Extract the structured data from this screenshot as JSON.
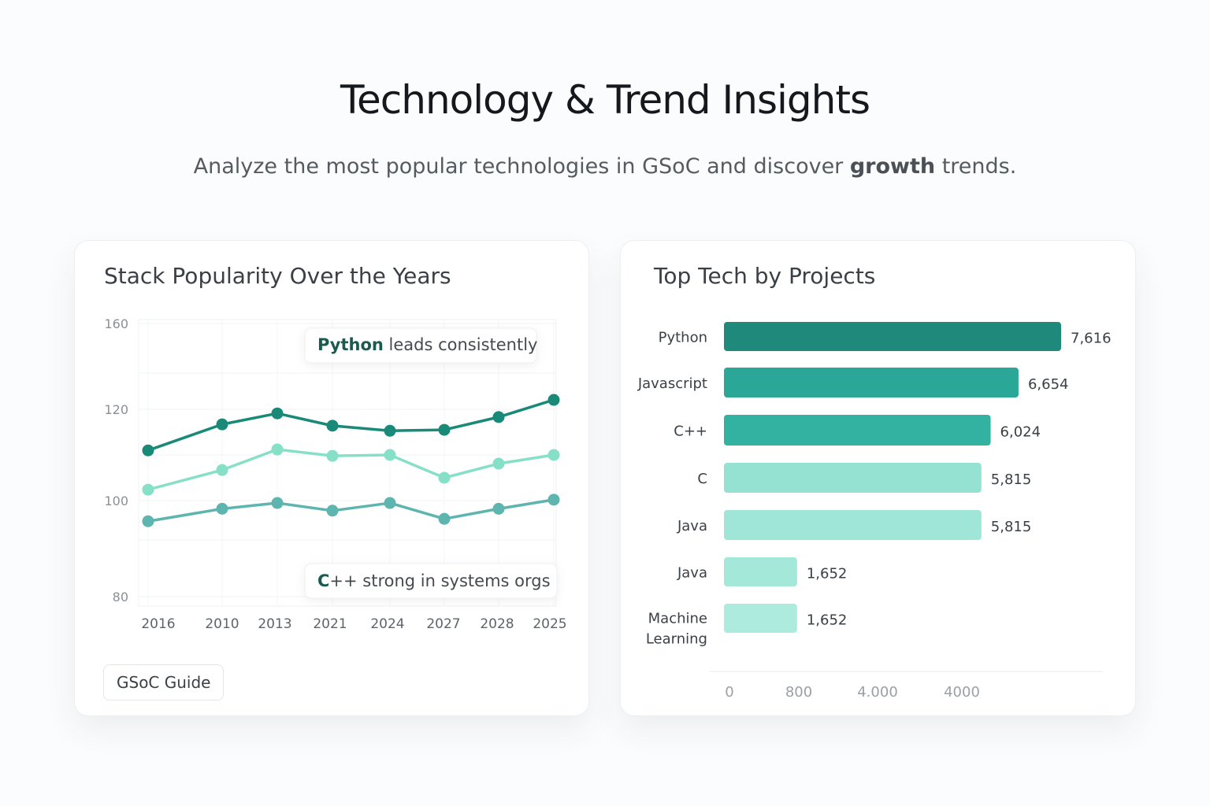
{
  "header": {
    "title": "Technology & Trend Insights",
    "subtitle_pre": "Analyze the most popular technologies in GSoC and discover ",
    "subtitle_bold": "growth",
    "subtitle_post": " trends."
  },
  "left_card": {
    "title": "Stack Popularity Over the Years",
    "guide_button": "GSoC Guide",
    "annotations": [
      {
        "bold": "Python",
        "rest": " leads consistently"
      },
      {
        "bold": "C",
        "rest": "++ strong in systems orgs"
      }
    ]
  },
  "right_card": {
    "title": "Top Tech by Projects"
  },
  "chart_data": [
    {
      "type": "line",
      "title": "Stack Popularity Over the Years",
      "categories": [
        "2016",
        "2010",
        "2013",
        "2021",
        "2024",
        "2027",
        "2028",
        "2025"
      ],
      "y_ticks": [
        160,
        120,
        100,
        80
      ],
      "ylim": [
        80,
        160
      ],
      "grid": true,
      "series": [
        {
          "color": "#1a8a78",
          "values": [
            111.0,
            116.7,
            119.1,
            116.4,
            115.3,
            115.5,
            118.3,
            124.4
          ]
        },
        {
          "color": "#86e0c8",
          "values": [
            102.4,
            106.7,
            111.2,
            109.8,
            110.0,
            105.0,
            108.1,
            110.0
          ]
        },
        {
          "color": "#5eb5b0",
          "values": [
            95.7,
            98.3,
            99.5,
            97.9,
            99.5,
            96.2,
            98.3,
            100.2
          ]
        }
      ]
    },
    {
      "type": "bar",
      "orientation": "horizontal",
      "title": "Top Tech by Projects",
      "categories": [
        "Python",
        "Javascript",
        "C++",
        "C",
        "Java",
        "Java",
        "Machine Learning"
      ],
      "values": [
        7616,
        6654,
        6024,
        5815,
        5815,
        1652,
        1652
      ],
      "value_labels": [
        "7,616",
        "6,654",
        "6,024",
        "5,815",
        "5,815",
        "1,652",
        "1,652"
      ],
      "colors": [
        "#1f8a7c",
        "#2aa797",
        "#33b2a1",
        "#95e2d3",
        "#9fe6d8",
        "#a4e8da",
        "#aeebdf"
      ],
      "x_ticks": [
        "0",
        "800",
        "4.000",
        "4000"
      ]
    }
  ]
}
